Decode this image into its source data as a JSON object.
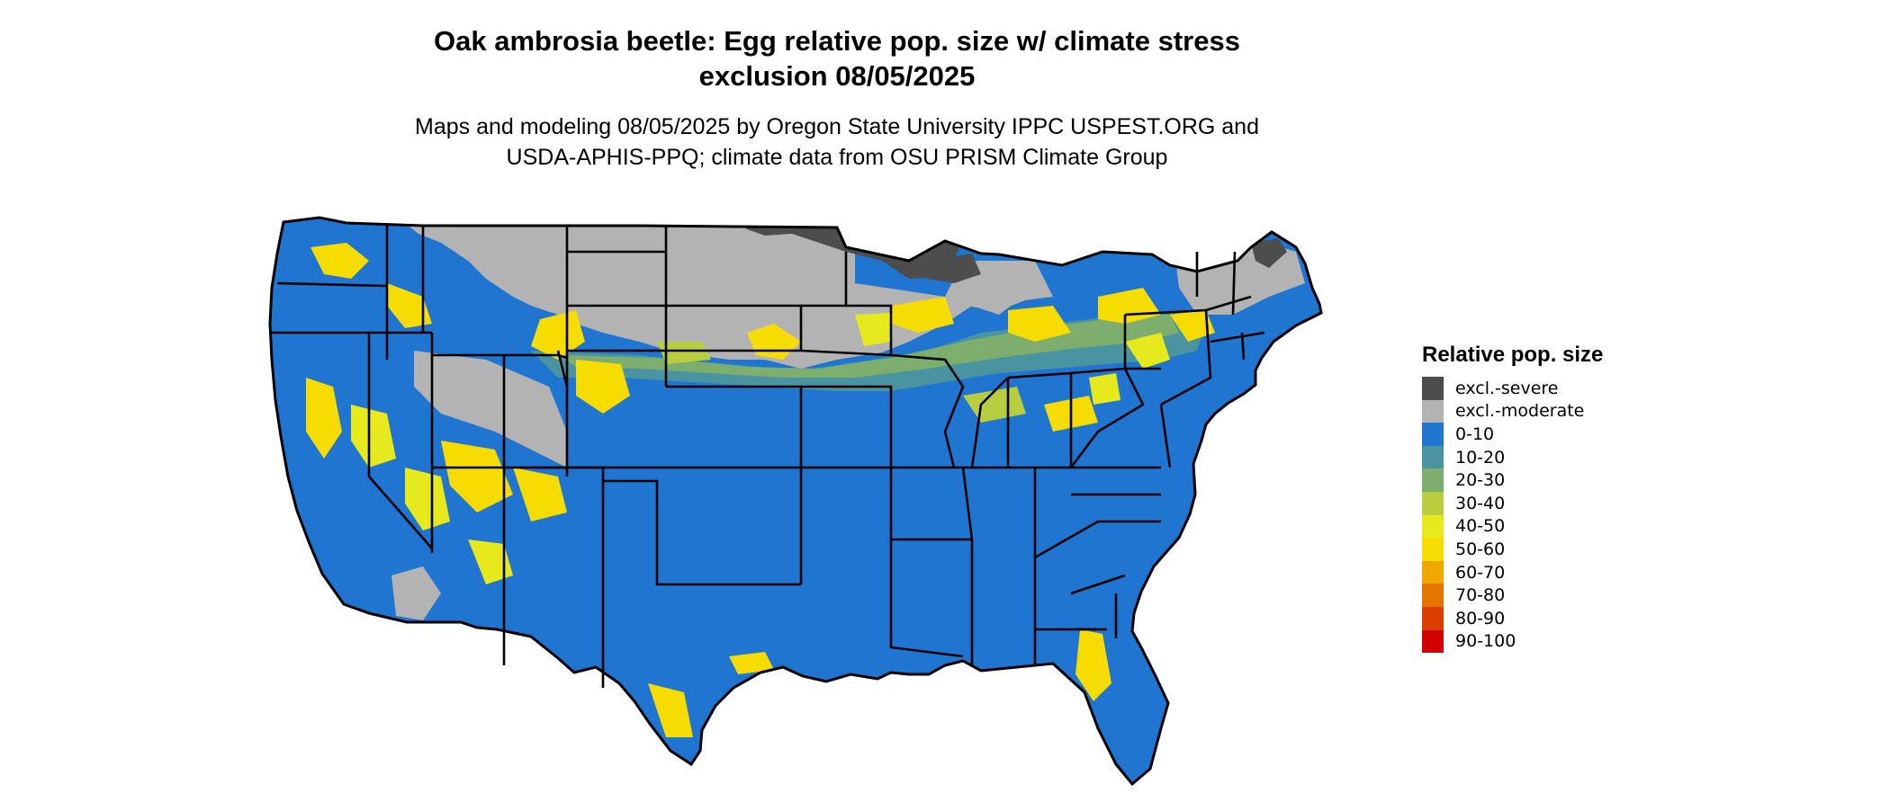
{
  "title": {
    "line1": "Oak ambrosia beetle: Egg relative pop. size w/ climate stress",
    "line2": "exclusion 08/05/2025"
  },
  "subtitle": {
    "line1": "Maps and modeling 08/05/2025 by Oregon State University IPPC USPEST.ORG and",
    "line2": "USDA-APHIS-PPQ; climate data from OSU PRISM Climate Group"
  },
  "legend": {
    "title": "Relative pop. size",
    "items": [
      {
        "label": "excl.-severe",
        "color": "#4d4d4d"
      },
      {
        "label": "excl.-moderate",
        "color": "#b3b3b3"
      },
      {
        "label": "0-10",
        "color": "#1f75d0"
      },
      {
        "label": "10-20",
        "color": "#4a94a2"
      },
      {
        "label": "20-30",
        "color": "#7dae6e"
      },
      {
        "label": "30-40",
        "color": "#b8ce3f"
      },
      {
        "label": "40-50",
        "color": "#e6ea1c"
      },
      {
        "label": "50-60",
        "color": "#f7dc00"
      },
      {
        "label": "60-70",
        "color": "#f0a800"
      },
      {
        "label": "70-80",
        "color": "#e57500"
      },
      {
        "label": "80-90",
        "color": "#da3d00"
      },
      {
        "label": "90-100",
        "color": "#d20000"
      }
    ]
  }
}
